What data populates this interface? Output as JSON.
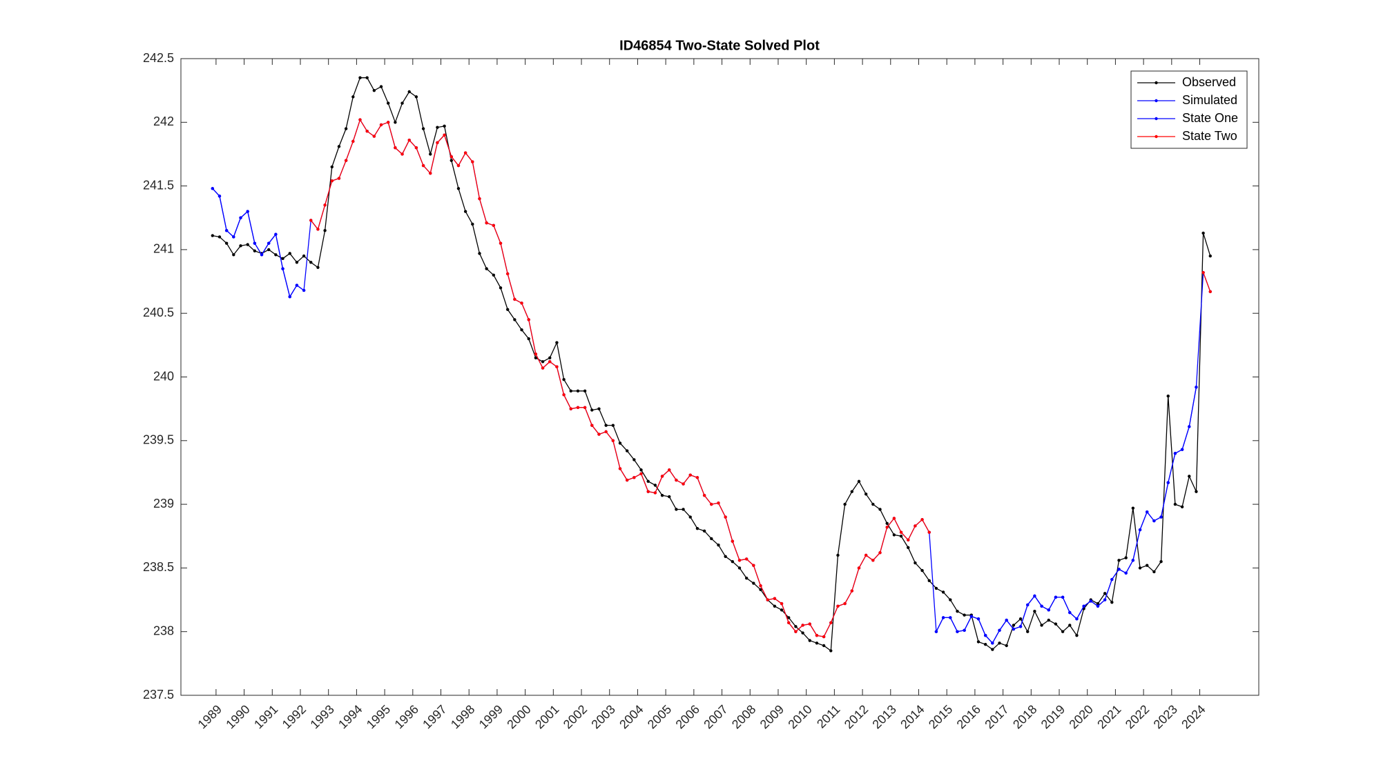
{
  "chart_data": {
    "type": "line",
    "title": "ID46854 Two-State Solved Plot",
    "x": [
      1988.875,
      1989.125,
      1989.375,
      1989.625,
      1989.875,
      1990.125,
      1990.375,
      1990.625,
      1990.875,
      1991.125,
      1991.375,
      1991.625,
      1991.875,
      1992.125,
      1992.375,
      1992.625,
      1992.875,
      1993.125,
      1993.375,
      1993.625,
      1993.875,
      1994.125,
      1994.375,
      1994.625,
      1994.875,
      1995.125,
      1995.375,
      1995.625,
      1995.875,
      1996.125,
      1996.375,
      1996.625,
      1996.875,
      1997.125,
      1997.375,
      1997.625,
      1997.875,
      1998.125,
      1998.375,
      1998.625,
      1998.875,
      1999.125,
      1999.375,
      1999.625,
      1999.875,
      2000.125,
      2000.375,
      2000.625,
      2000.875,
      2001.125,
      2001.375,
      2001.625,
      2001.875,
      2002.125,
      2002.375,
      2002.625,
      2002.875,
      2003.125,
      2003.375,
      2003.625,
      2003.875,
      2004.125,
      2004.375,
      2004.625,
      2004.875,
      2005.125,
      2005.375,
      2005.625,
      2005.875,
      2006.125,
      2006.375,
      2006.625,
      2006.875,
      2007.125,
      2007.375,
      2007.625,
      2007.875,
      2008.125,
      2008.375,
      2008.625,
      2008.875,
      2009.125,
      2009.375,
      2009.625,
      2009.875,
      2010.125,
      2010.375,
      2010.625,
      2010.875,
      2011.125,
      2011.375,
      2011.625,
      2011.875,
      2012.125,
      2012.375,
      2012.625,
      2012.875,
      2013.125,
      2013.375,
      2013.625,
      2013.875,
      2014.125,
      2014.375,
      2014.625,
      2014.875,
      2015.125,
      2015.375,
      2015.625,
      2015.875,
      2016.125,
      2016.375,
      2016.625,
      2016.875,
      2017.125,
      2017.375,
      2017.625,
      2017.875,
      2018.125,
      2018.375,
      2018.625,
      2018.875,
      2019.125,
      2019.375,
      2019.625,
      2019.875,
      2020.125,
      2020.375,
      2020.625,
      2020.875,
      2021.125,
      2021.375,
      2021.625,
      2021.875,
      2022.125,
      2022.375,
      2022.625,
      2022.875,
      2023.125,
      2023.375,
      2023.625,
      2023.875,
      2024.125,
      2024.375
    ],
    "series": [
      {
        "name": "Observed",
        "color": "#000000",
        "values": [
          241.11,
          241.1,
          241.05,
          240.96,
          241.03,
          241.04,
          240.99,
          240.97,
          241.0,
          240.96,
          240.93,
          240.97,
          240.9,
          240.95,
          240.9,
          240.86,
          241.15,
          241.65,
          241.81,
          241.95,
          242.2,
          242.35,
          242.35,
          242.25,
          242.28,
          242.15,
          242.0,
          242.15,
          242.24,
          242.2,
          241.95,
          241.75,
          241.96,
          241.97,
          241.7,
          241.48,
          241.3,
          241.2,
          240.97,
          240.85,
          240.8,
          240.7,
          240.53,
          240.45,
          240.37,
          240.3,
          240.15,
          240.12,
          240.15,
          240.27,
          239.98,
          239.89,
          239.89,
          239.89,
          239.74,
          239.75,
          239.62,
          239.62,
          239.48,
          239.42,
          239.35,
          239.27,
          239.18,
          239.15,
          239.07,
          239.06,
          238.96,
          238.96,
          238.9,
          238.81,
          238.79,
          238.73,
          238.68,
          238.59,
          238.55,
          238.5,
          238.42,
          238.38,
          238.33,
          238.25,
          238.2,
          238.17,
          238.11,
          238.04,
          237.99,
          237.93,
          237.91,
          237.89,
          237.85,
          238.6,
          239.0,
          239.1,
          239.18,
          239.08,
          239.0,
          238.96,
          238.85,
          238.76,
          238.75,
          238.66,
          238.54,
          238.48,
          238.4,
          238.34,
          238.31,
          238.25,
          238.16,
          238.13,
          238.13,
          237.92,
          237.9,
          237.86,
          237.91,
          237.89,
          238.05,
          238.1,
          238.0,
          238.16,
          238.05,
          238.09,
          238.06,
          238.0,
          238.05,
          237.97,
          238.18,
          238.25,
          238.22,
          238.3,
          238.23,
          238.56,
          238.58,
          238.97,
          238.5,
          238.52,
          238.47,
          238.55,
          239.85,
          239.0,
          238.98,
          239.22,
          239.1,
          241.13,
          240.95
        ]
      },
      {
        "name": "Simulated",
        "color": "#0000ff",
        "values": [
          241.48,
          241.42,
          241.15,
          241.1,
          241.25,
          241.3,
          241.05,
          240.96,
          241.05,
          241.12,
          240.85,
          240.63,
          240.72,
          240.68,
          241.23,
          241.16,
          241.35,
          241.54,
          241.56,
          241.7,
          241.85,
          242.02,
          241.93,
          241.89,
          241.98,
          242.0,
          241.8,
          241.75,
          241.86,
          241.8,
          241.66,
          241.6,
          241.84,
          241.9,
          241.73,
          241.66,
          241.76,
          241.69,
          241.4,
          241.21,
          241.19,
          241.05,
          240.81,
          240.61,
          240.58,
          240.45,
          240.18,
          240.07,
          240.12,
          240.08,
          239.86,
          239.75,
          239.76,
          239.76,
          239.62,
          239.55,
          239.57,
          239.5,
          239.28,
          239.19,
          239.21,
          239.24,
          239.1,
          239.09,
          239.22,
          239.27,
          239.19,
          239.16,
          239.23,
          239.21,
          239.07,
          239.0,
          239.01,
          238.9,
          238.71,
          238.56,
          238.57,
          238.52,
          238.36,
          238.25,
          238.26,
          238.22,
          238.07,
          238.0,
          238.05,
          238.06,
          237.97,
          237.96,
          238.07,
          238.2,
          238.22,
          238.32,
          238.5,
          238.6,
          238.56,
          238.62,
          238.82,
          238.89,
          238.78,
          238.72,
          238.83,
          238.88,
          238.78,
          238.0,
          238.11,
          238.11,
          238.0,
          238.01,
          238.12,
          238.1,
          237.97,
          237.91,
          238.01,
          238.09,
          238.02,
          238.04,
          238.21,
          238.28,
          238.2,
          238.17,
          238.27,
          238.27,
          238.15,
          238.1,
          238.2,
          238.24,
          238.2,
          238.25,
          238.41,
          238.49,
          238.46,
          238.56,
          238.8,
          238.94,
          238.87,
          238.9,
          239.17,
          239.4,
          239.43,
          239.61,
          239.92,
          240.82,
          240.67
        ]
      },
      {
        "name": "State One",
        "color": "#0000ff",
        "values": [
          241.48,
          241.42,
          241.15,
          241.1,
          241.25,
          241.3,
          241.05,
          240.96,
          241.05,
          241.12,
          240.85,
          240.63,
          240.72,
          240.68,
          null,
          null,
          null,
          null,
          null,
          null,
          null,
          null,
          null,
          null,
          null,
          null,
          null,
          null,
          null,
          null,
          null,
          null,
          null,
          null,
          null,
          null,
          null,
          null,
          null,
          null,
          null,
          null,
          null,
          null,
          null,
          null,
          null,
          null,
          null,
          null,
          null,
          null,
          null,
          null,
          null,
          null,
          null,
          null,
          null,
          null,
          null,
          null,
          null,
          null,
          null,
          null,
          null,
          null,
          null,
          null,
          null,
          null,
          null,
          null,
          null,
          null,
          null,
          null,
          null,
          null,
          null,
          null,
          null,
          null,
          null,
          null,
          null,
          null,
          null,
          null,
          null,
          null,
          null,
          null,
          null,
          null,
          null,
          null,
          null,
          null,
          null,
          null,
          null,
          238.0,
          238.11,
          238.11,
          238.0,
          238.01,
          238.12,
          238.1,
          237.97,
          237.91,
          238.01,
          238.09,
          238.02,
          238.04,
          238.21,
          238.28,
          238.2,
          238.17,
          238.27,
          238.27,
          238.15,
          238.1,
          238.2,
          238.24,
          238.2,
          238.25,
          238.41,
          238.49,
          238.46,
          238.56,
          238.8,
          238.94,
          238.87,
          238.9,
          239.17,
          239.4,
          239.43,
          239.61,
          239.92,
          null,
          null
        ]
      },
      {
        "name": "State Two",
        "color": "#ff0000",
        "values": [
          null,
          null,
          null,
          null,
          null,
          null,
          null,
          null,
          null,
          null,
          null,
          null,
          null,
          null,
          241.23,
          241.16,
          241.35,
          241.54,
          241.56,
          241.7,
          241.85,
          242.02,
          241.93,
          241.89,
          241.98,
          242.0,
          241.8,
          241.75,
          241.86,
          241.8,
          241.66,
          241.6,
          241.84,
          241.9,
          241.73,
          241.66,
          241.76,
          241.69,
          241.4,
          241.21,
          241.19,
          241.05,
          240.81,
          240.61,
          240.58,
          240.45,
          240.18,
          240.07,
          240.12,
          240.08,
          239.86,
          239.75,
          239.76,
          239.76,
          239.62,
          239.55,
          239.57,
          239.5,
          239.28,
          239.19,
          239.21,
          239.24,
          239.1,
          239.09,
          239.22,
          239.27,
          239.19,
          239.16,
          239.23,
          239.21,
          239.07,
          239.0,
          239.01,
          238.9,
          238.71,
          238.56,
          238.57,
          238.52,
          238.36,
          238.25,
          238.26,
          238.22,
          238.07,
          238.0,
          238.05,
          238.06,
          237.97,
          237.96,
          238.07,
          238.2,
          238.22,
          238.32,
          238.5,
          238.6,
          238.56,
          238.62,
          238.82,
          238.89,
          238.78,
          238.72,
          238.83,
          238.88,
          238.78,
          null,
          null,
          null,
          null,
          null,
          null,
          null,
          null,
          null,
          null,
          null,
          null,
          null,
          null,
          null,
          null,
          null,
          null,
          null,
          null,
          null,
          null,
          null,
          null,
          null,
          null,
          null,
          null,
          null,
          null,
          null,
          null,
          null,
          null,
          null,
          null,
          null,
          null,
          240.82,
          240.67
        ]
      }
    ],
    "xlim": [
      1987.75,
      2026.1
    ],
    "xticks": [
      1989,
      1990,
      1991,
      1992,
      1993,
      1994,
      1995,
      1996,
      1997,
      1998,
      1999,
      2000,
      2001,
      2002,
      2003,
      2004,
      2005,
      2006,
      2007,
      2008,
      2009,
      2010,
      2011,
      2012,
      2013,
      2014,
      2015,
      2016,
      2017,
      2018,
      2019,
      2020,
      2021,
      2022,
      2023,
      2024
    ],
    "ylim": [
      237.5,
      242.5
    ],
    "yticks": [
      237.5,
      238,
      238.5,
      239,
      239.5,
      240,
      240.5,
      241,
      241.5,
      242,
      242.5
    ],
    "grid": false,
    "legend": "northeast"
  }
}
